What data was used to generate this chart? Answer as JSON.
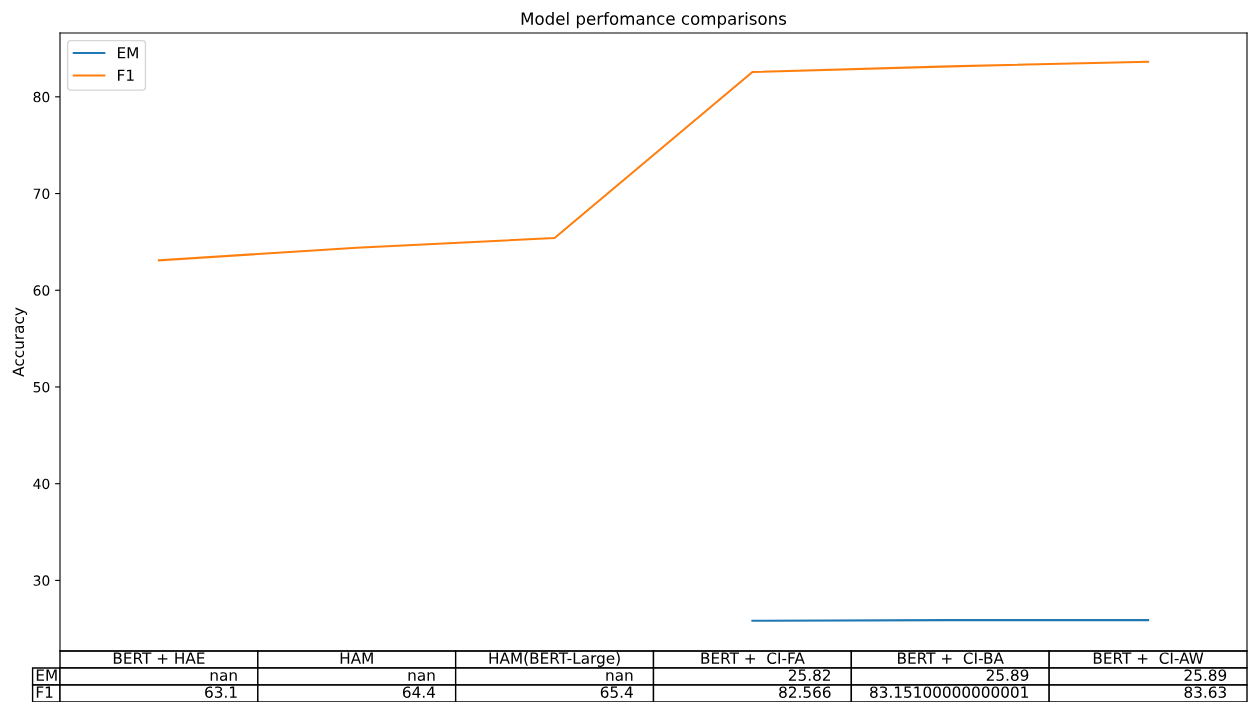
{
  "chart_data": {
    "type": "line",
    "title": "Model perfomance comparisons",
    "ylabel": "Accuracy",
    "categories": [
      "BERT + HAE",
      "HAM",
      "HAM(BERT-Large)",
      "BERT +  CI-FA",
      "BERT +  CI-BA",
      "BERT +  CI-AW"
    ],
    "series": [
      {
        "name": "EM",
        "color": "#1f77b4",
        "values": [
          null,
          null,
          null,
          25.82,
          25.89,
          25.89
        ],
        "value_labels": [
          "nan",
          "nan",
          "nan",
          "25.82",
          "25.89",
          "25.89"
        ]
      },
      {
        "name": "F1",
        "color": "#ff7f0e",
        "values": [
          63.1,
          64.4,
          65.4,
          82.566,
          83.15100000000001,
          83.63
        ],
        "value_labels": [
          "63.1",
          "64.4",
          "65.4",
          "82.566",
          "83.15100000000001",
          "83.63"
        ]
      }
    ],
    "ylim": [
      22.7,
      86.6
    ],
    "yticks": [
      30,
      40,
      50,
      60,
      70,
      80
    ],
    "legend": "top left",
    "tick_labels": "y",
    "marker": "none",
    "line_style": "solid"
  }
}
